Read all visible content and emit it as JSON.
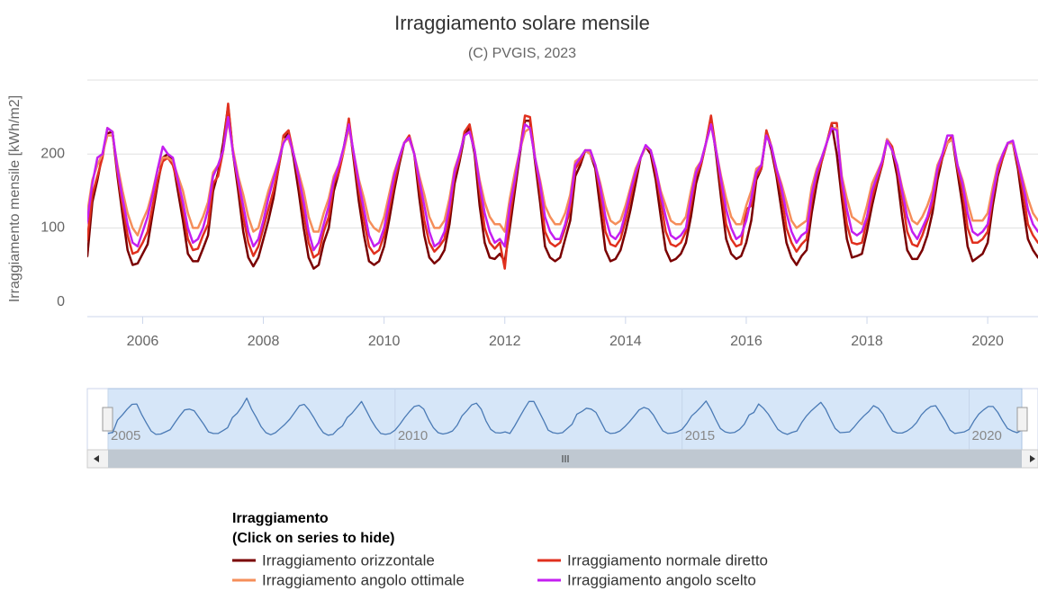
{
  "chart_data": {
    "type": "line",
    "title": "Irraggiamento solare mensile",
    "subtitle": "(C) PVGIS, 2023",
    "y_label": "Irraggiamento mensile [kWh/m2]",
    "ylim": [
      -20,
      300
    ],
    "yticks": [
      0,
      100,
      200
    ],
    "xlim": [
      "2005-02",
      "2020-11"
    ],
    "xticks": [
      2006,
      2008,
      2010,
      2012,
      2014,
      2016,
      2018,
      2020
    ],
    "grid": true,
    "navigator": {
      "xticks": [
        2005,
        2010,
        2015,
        2020
      ],
      "color": "#4a7ab5"
    },
    "legend": {
      "title": [
        "Irraggiamento",
        "(Click on series to hide)"
      ],
      "position": "bottom"
    },
    "x": [
      "2005-01",
      "2005-02",
      "2005-03",
      "2005-04",
      "2005-05",
      "2005-06",
      "2005-07",
      "2005-08",
      "2005-09",
      "2005-10",
      "2005-11",
      "2005-12",
      "2006-01",
      "2006-02",
      "2006-03",
      "2006-04",
      "2006-05",
      "2006-06",
      "2006-07",
      "2006-08",
      "2006-09",
      "2006-10",
      "2006-11",
      "2006-12",
      "2007-01",
      "2007-02",
      "2007-03",
      "2007-04",
      "2007-05",
      "2007-06",
      "2007-07",
      "2007-08",
      "2007-09",
      "2007-10",
      "2007-11",
      "2007-12",
      "2008-01",
      "2008-02",
      "2008-03",
      "2008-04",
      "2008-05",
      "2008-06",
      "2008-07",
      "2008-08",
      "2008-09",
      "2008-10",
      "2008-11",
      "2008-12",
      "2009-01",
      "2009-02",
      "2009-03",
      "2009-04",
      "2009-05",
      "2009-06",
      "2009-07",
      "2009-08",
      "2009-09",
      "2009-10",
      "2009-11",
      "2009-12",
      "2010-01",
      "2010-02",
      "2010-03",
      "2010-04",
      "2010-05",
      "2010-06",
      "2010-07",
      "2010-08",
      "2010-09",
      "2010-10",
      "2010-11",
      "2010-12",
      "2011-01",
      "2011-02",
      "2011-03",
      "2011-04",
      "2011-05",
      "2011-06",
      "2011-07",
      "2011-08",
      "2011-09",
      "2011-10",
      "2011-11",
      "2011-12",
      "2012-01",
      "2012-02",
      "2012-03",
      "2012-04",
      "2012-05",
      "2012-06",
      "2012-07",
      "2012-08",
      "2012-09",
      "2012-10",
      "2012-11",
      "2012-12",
      "2013-01",
      "2013-02",
      "2013-03",
      "2013-04",
      "2013-05",
      "2013-06",
      "2013-07",
      "2013-08",
      "2013-09",
      "2013-10",
      "2013-11",
      "2013-12",
      "2014-01",
      "2014-02",
      "2014-03",
      "2014-04",
      "2014-05",
      "2014-06",
      "2014-07",
      "2014-08",
      "2014-09",
      "2014-10",
      "2014-11",
      "2014-12",
      "2015-01",
      "2015-02",
      "2015-03",
      "2015-04",
      "2015-05",
      "2015-06",
      "2015-07",
      "2015-08",
      "2015-09",
      "2015-10",
      "2015-11",
      "2015-12",
      "2016-01",
      "2016-02",
      "2016-03",
      "2016-04",
      "2016-05",
      "2016-06",
      "2016-07",
      "2016-08",
      "2016-09",
      "2016-10",
      "2016-11",
      "2016-12",
      "2017-01",
      "2017-02",
      "2017-03",
      "2017-04",
      "2017-05",
      "2017-06",
      "2017-07",
      "2017-08",
      "2017-09",
      "2017-10",
      "2017-11",
      "2017-12",
      "2018-01",
      "2018-02",
      "2018-03",
      "2018-04",
      "2018-05",
      "2018-06",
      "2018-07",
      "2018-08",
      "2018-09",
      "2018-10",
      "2018-11",
      "2018-12",
      "2019-01",
      "2019-02",
      "2019-03",
      "2019-04",
      "2019-05",
      "2019-06",
      "2019-07",
      "2019-08",
      "2019-09",
      "2019-10",
      "2019-11",
      "2019-12",
      "2020-01",
      "2020-02",
      "2020-03",
      "2020-04",
      "2020-05",
      "2020-06",
      "2020-07",
      "2020-08",
      "2020-09",
      "2020-10",
      "2020-11",
      "2020-12"
    ],
    "series": [
      {
        "name": "Irraggiamento orizzontale",
        "color": "#7a0000",
        "values": [
          55,
          62,
          135,
          165,
          200,
          228,
          230,
          170,
          118,
          70,
          50,
          52,
          65,
          78,
          120,
          160,
          195,
          200,
          190,
          150,
          110,
          65,
          55,
          55,
          72,
          90,
          150,
          175,
          215,
          265,
          200,
          150,
          95,
          60,
          48,
          60,
          85,
          110,
          140,
          180,
          220,
          228,
          195,
          150,
          100,
          60,
          45,
          50,
          80,
          100,
          150,
          175,
          210,
          245,
          190,
          135,
          90,
          55,
          50,
          55,
          75,
          110,
          150,
          185,
          215,
          222,
          200,
          140,
          90,
          60,
          52,
          58,
          70,
          105,
          160,
          190,
          225,
          235,
          200,
          130,
          80,
          60,
          58,
          65,
          55,
          100,
          150,
          200,
          245,
          245,
          190,
          135,
          75,
          60,
          55,
          60,
          85,
          110,
          170,
          185,
          205,
          200,
          180,
          125,
          70,
          55,
          58,
          70,
          95,
          125,
          160,
          195,
          210,
          200,
          165,
          115,
          70,
          55,
          58,
          65,
          80,
          115,
          160,
          185,
          215,
          248,
          200,
          140,
          85,
          65,
          58,
          62,
          80,
          110,
          165,
          180,
          230,
          205,
          170,
          125,
          80,
          60,
          50,
          62,
          70,
          120,
          160,
          190,
          215,
          240,
          200,
          140,
          85,
          60,
          62,
          65,
          95,
          130,
          160,
          185,
          220,
          205,
          170,
          115,
          70,
          58,
          58,
          70,
          90,
          120,
          165,
          195,
          215,
          220,
          175,
          130,
          75,
          55,
          60,
          65,
          80,
          130,
          170,
          195,
          215,
          215,
          180,
          130,
          85,
          70,
          60,
          75
        ]
      },
      {
        "name": "Irraggiamento normale diretto",
        "color": "#e0301e",
        "values": [
          70,
          85,
          145,
          170,
          195,
          235,
          230,
          175,
          130,
          90,
          65,
          68,
          80,
          95,
          130,
          165,
          190,
          195,
          185,
          160,
          125,
          85,
          70,
          72,
          90,
          105,
          160,
          170,
          205,
          268,
          200,
          160,
          115,
          80,
          62,
          75,
          100,
          125,
          150,
          180,
          225,
          232,
          200,
          165,
          120,
          80,
          60,
          65,
          95,
          115,
          160,
          175,
          205,
          248,
          195,
          150,
          110,
          75,
          65,
          70,
          90,
          125,
          160,
          190,
          215,
          225,
          200,
          155,
          110,
          80,
          68,
          75,
          85,
          120,
          170,
          195,
          230,
          240,
          205,
          150,
          100,
          80,
          72,
          80,
          45,
          115,
          160,
          205,
          252,
          250,
          195,
          150,
          95,
          80,
          75,
          80,
          100,
          125,
          180,
          190,
          205,
          205,
          185,
          145,
          95,
          78,
          75,
          85,
          110,
          140,
          170,
          195,
          210,
          205,
          175,
          135,
          95,
          78,
          75,
          80,
          95,
          130,
          170,
          185,
          215,
          252,
          205,
          155,
          105,
          85,
          75,
          78,
          125,
          130,
          170,
          180,
          232,
          210,
          175,
          145,
          100,
          80,
          68,
          78,
          85,
          135,
          170,
          190,
          215,
          242,
          242,
          155,
          105,
          80,
          78,
          80,
          110,
          140,
          165,
          185,
          220,
          210,
          180,
          140,
          95,
          78,
          75,
          90,
          110,
          130,
          175,
          195,
          215,
          225,
          180,
          150,
          100,
          80,
          80,
          85,
          95,
          140,
          175,
          195,
          215,
          215,
          185,
          150,
          105,
          90,
          80,
          90
        ]
      },
      {
        "name": "Irraggiamento angolo ottimale",
        "color": "#f58e5a",
        "values": [
          95,
          120,
          165,
          185,
          200,
          225,
          225,
          185,
          150,
          120,
          100,
          90,
          110,
          125,
          150,
          180,
          195,
          195,
          190,
          170,
          150,
          120,
          100,
          100,
          115,
          135,
          175,
          185,
          205,
          245,
          205,
          170,
          145,
          115,
          95,
          100,
          125,
          150,
          170,
          190,
          220,
          220,
          200,
          175,
          150,
          115,
          95,
          95,
          120,
          140,
          170,
          185,
          205,
          235,
          200,
          165,
          140,
          110,
          100,
          95,
          115,
          145,
          175,
          195,
          215,
          220,
          200,
          170,
          145,
          115,
          100,
          100,
          110,
          140,
          180,
          200,
          225,
          230,
          205,
          165,
          135,
          115,
          105,
          105,
          95,
          140,
          175,
          205,
          230,
          235,
          195,
          165,
          130,
          115,
          105,
          105,
          120,
          145,
          190,
          195,
          205,
          200,
          185,
          160,
          130,
          110,
          105,
          110,
          130,
          155,
          180,
          195,
          210,
          205,
          180,
          150,
          130,
          110,
          105,
          105,
          115,
          150,
          180,
          190,
          215,
          240,
          205,
          170,
          140,
          115,
          105,
          105,
          130,
          150,
          180,
          185,
          225,
          210,
          180,
          160,
          135,
          110,
          100,
          105,
          110,
          155,
          180,
          195,
          215,
          235,
          235,
          170,
          140,
          115,
          110,
          105,
          130,
          160,
          175,
          190,
          220,
          205,
          185,
          155,
          130,
          110,
          105,
          115,
          130,
          150,
          185,
          200,
          215,
          220,
          185,
          165,
          135,
          110,
          110,
          110,
          120,
          155,
          185,
          200,
          215,
          215,
          190,
          165,
          140,
          120,
          110,
          115
        ]
      },
      {
        "name": "Irraggiamento angolo scelto",
        "color": "#c41ff0",
        "values": [
          85,
          110,
          160,
          195,
          200,
          235,
          230,
          180,
          140,
          105,
          80,
          75,
          95,
          115,
          145,
          180,
          210,
          200,
          195,
          165,
          135,
          100,
          80,
          85,
          100,
          125,
          170,
          185,
          205,
          250,
          200,
          165,
          130,
          95,
          75,
          85,
          110,
          140,
          165,
          190,
          215,
          225,
          200,
          170,
          135,
          95,
          70,
          80,
          105,
          130,
          165,
          185,
          210,
          240,
          200,
          160,
          125,
          90,
          75,
          80,
          100,
          135,
          170,
          195,
          215,
          222,
          200,
          165,
          130,
          95,
          75,
          80,
          95,
          130,
          175,
          200,
          225,
          230,
          205,
          160,
          120,
          95,
          80,
          85,
          75,
          130,
          165,
          205,
          240,
          235,
          195,
          160,
          115,
          95,
          85,
          85,
          105,
          135,
          185,
          195,
          205,
          205,
          185,
          155,
          115,
          90,
          85,
          95,
          120,
          150,
          175,
          195,
          212,
          205,
          180,
          145,
          115,
          90,
          85,
          90,
          100,
          140,
          175,
          190,
          215,
          240,
          205,
          165,
          125,
          100,
          85,
          90,
          110,
          140,
          175,
          185,
          225,
          210,
          180,
          155,
          120,
          95,
          80,
          90,
          95,
          145,
          175,
          195,
          215,
          235,
          232,
          165,
          125,
          95,
          90,
          95,
          115,
          150,
          170,
          190,
          218,
          205,
          185,
          150,
          115,
          95,
          85,
          100,
          115,
          140,
          180,
          200,
          225,
          225,
          185,
          160,
          120,
          95,
          90,
          95,
          105,
          145,
          180,
          200,
          215,
          218,
          190,
          160,
          125,
          105,
          95,
          100
        ]
      }
    ]
  }
}
